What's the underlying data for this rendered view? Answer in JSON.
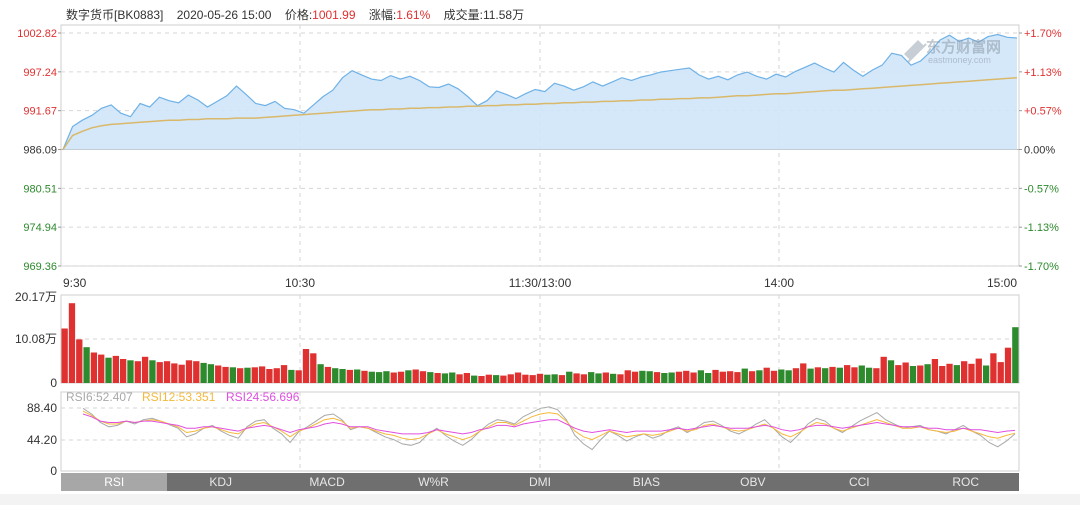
{
  "header": {
    "name": "数字货币[BK0883]",
    "datetime": "2020-05-26 15:00",
    "price_label": "价格:",
    "price": "1001.99",
    "change_label": "涨幅:",
    "change": "1.61%",
    "volume_label": "成交量:",
    "volume": "11.58万"
  },
  "watermark": {
    "cn": "东方财富网",
    "en": "eastmoney.com"
  },
  "colors": {
    "up": "#e03131",
    "down": "#2d8a2d",
    "price_line": "#6fb1e6",
    "price_fill": "#cfe6fa",
    "avg_line": "#d9b86a",
    "rsi6": "#a9a9a9",
    "rsi12": "#f5b93a",
    "rsi24": "#e04fe0"
  },
  "chart_data": [
    {
      "type": "area",
      "title": "",
      "y_left_ticks": [
        "1002.82",
        "997.24",
        "991.67",
        "986.09",
        "980.51",
        "974.94",
        "969.36"
      ],
      "y_right_ticks": [
        "+1.70%",
        "+1.13%",
        "+0.57%",
        "0.00%",
        "-0.57%",
        "-1.13%",
        "-1.70%"
      ],
      "ylim": [
        969.36,
        1002.82
      ],
      "x_ticks": [
        "9:30",
        "10:30",
        "11:30/13:00",
        "14:00",
        "15:00"
      ],
      "series": [
        {
          "name": "价格",
          "values": [
            986.1,
            989.4,
            990.3,
            991.0,
            992.0,
            992.5,
            991.3,
            990.8,
            992.7,
            992.2,
            993.6,
            993.1,
            992.8,
            993.9,
            993.2,
            992.2,
            993.0,
            993.8,
            995.2,
            994.0,
            992.7,
            992.4,
            993.0,
            992.0,
            991.8,
            991.3,
            992.5,
            993.7,
            994.6,
            996.4,
            997.4,
            996.8,
            996.2,
            996.0,
            996.7,
            996.2,
            996.6,
            996.0,
            995.1,
            995.0,
            995.5,
            994.8,
            993.7,
            992.4,
            993.1,
            994.5,
            994.0,
            993.4,
            994.1,
            994.7,
            994.4,
            995.6,
            995.2,
            994.6,
            995.1,
            995.8,
            995.2,
            995.8,
            996.4,
            996.0,
            996.5,
            996.8,
            997.2,
            997.4,
            997.6,
            997.8,
            996.8,
            996.2,
            996.6,
            996.1,
            996.8,
            997.2,
            996.6,
            996.2,
            996.9,
            996.5,
            997.3,
            997.9,
            998.5,
            997.8,
            997.2,
            998.6,
            997.5,
            996.6,
            997.5,
            998.2,
            999.9,
            999.6,
            998.2,
            998.8,
            1000.1,
            1001.8,
            1002.5,
            1001.6,
            1002.1,
            1001.5,
            1002.3,
            1002.6,
            1002.2,
            1002.1
          ]
        },
        {
          "name": "均价",
          "values": [
            986.1,
            988.1,
            988.7,
            989.2,
            989.5,
            989.7,
            989.8,
            989.9,
            990.0,
            990.1,
            990.2,
            990.3,
            990.3,
            990.4,
            990.4,
            990.5,
            990.5,
            990.5,
            990.6,
            990.6,
            990.6,
            990.7,
            990.8,
            990.9,
            991.0,
            991.1,
            991.2,
            991.3,
            991.4,
            991.5,
            991.6,
            991.7,
            991.8,
            991.8,
            991.9,
            991.9,
            992.0,
            992.0,
            992.1,
            992.1,
            992.2,
            992.2,
            992.3,
            992.3,
            992.4,
            992.4,
            992.5,
            992.5,
            992.6,
            992.6,
            992.7,
            992.7,
            992.8,
            992.8,
            992.9,
            992.9,
            993.0,
            993.0,
            993.1,
            993.1,
            993.2,
            993.2,
            993.3,
            993.3,
            993.4,
            993.4,
            993.5,
            993.5,
            993.6,
            993.7,
            993.8,
            993.8,
            993.9,
            994.0,
            994.1,
            994.1,
            994.2,
            994.3,
            994.4,
            994.5,
            994.6,
            994.6,
            994.7,
            994.8,
            994.9,
            995.0,
            995.1,
            995.2,
            995.3,
            995.4,
            995.5,
            995.6,
            995.7,
            995.8,
            995.9,
            996.0,
            996.1,
            996.2,
            996.3,
            996.4
          ]
        }
      ]
    },
    {
      "type": "bar",
      "y_ticks": [
        "20.17万",
        "10.08万",
        "0"
      ],
      "ylim": [
        0,
        20.17
      ],
      "values": [
        12.5,
        18.3,
        10.0,
        8.2,
        7.0,
        6.5,
        5.8,
        6.2,
        5.5,
        5.2,
        5.0,
        6.0,
        5.2,
        4.8,
        5.0,
        4.5,
        4.2,
        5.2,
        5.0,
        4.6,
        4.3,
        4.0,
        3.7,
        3.6,
        3.4,
        3.5,
        3.6,
        3.8,
        3.2,
        3.4,
        4.1,
        3.0,
        2.9,
        7.8,
        6.8,
        4.3,
        3.7,
        3.4,
        3.2,
        3.0,
        3.1,
        2.8,
        2.6,
        2.5,
        2.7,
        2.4,
        2.6,
        2.9,
        3.1,
        2.7,
        2.5,
        2.3,
        2.2,
        2.4,
        2.0,
        2.3,
        1.7,
        1.6,
        1.9,
        1.8,
        1.7,
        2.0,
        2.4,
        1.9,
        1.8,
        2.1,
        1.9,
        2.0,
        1.8,
        2.6,
        2.2,
        2.0,
        2.5,
        2.2,
        2.4,
        2.1,
        2.0,
        2.9,
        2.6,
        2.8,
        2.7,
        2.5,
        2.3,
        2.4,
        2.6,
        2.8,
        2.4,
        2.9,
        2.3,
        3.0,
        2.6,
        2.7,
        2.5,
        3.3,
        2.7,
        2.9,
        3.5,
        2.8,
        3.1,
        2.9,
        3.4,
        4.5,
        3.3,
        3.6,
        3.4,
        3.7,
        3.5,
        4.1,
        3.6,
        4.0,
        3.5,
        3.4,
        6.0,
        5.2,
        4.1,
        4.7,
        3.9,
        4.0,
        4.3,
        5.5,
        3.9,
        4.4,
        4.1,
        5.0,
        4.4,
        5.6,
        4.0,
        6.8,
        4.8,
        8.1,
        12.8
      ],
      "colors_up": [
        1,
        1,
        1,
        0,
        1,
        1,
        0,
        1,
        1,
        0,
        1,
        1,
        0,
        1,
        1,
        1,
        1,
        1,
        1,
        0,
        0,
        1,
        1,
        0,
        1,
        0,
        1,
        1,
        1,
        1,
        1,
        0,
        1,
        1,
        1,
        0,
        1,
        0,
        0,
        1,
        0,
        1,
        0,
        0,
        0,
        1,
        1,
        0,
        1,
        1,
        0,
        1,
        0,
        0,
        1,
        1,
        0,
        1,
        1,
        0,
        1,
        1,
        1,
        1,
        1,
        1,
        0,
        0,
        1,
        0,
        1,
        1,
        0,
        0,
        1,
        0,
        1,
        1,
        1,
        0,
        0,
        1,
        0,
        0,
        1,
        1,
        1,
        0,
        0,
        1,
        1,
        1,
        1,
        0,
        1,
        0,
        1,
        1,
        0,
        0,
        1,
        1,
        0,
        1,
        0,
        1,
        0,
        1,
        1,
        0,
        0,
        1,
        1,
        0,
        1,
        1,
        0,
        1,
        0,
        1,
        1,
        1,
        0,
        1,
        1,
        1,
        0,
        1,
        1,
        1,
        0
      ]
    },
    {
      "type": "line",
      "y_ticks": [
        "88.40",
        "44.20",
        "0"
      ],
      "ylim": [
        0,
        88.4
      ],
      "legend": [
        "RSI6:52.407",
        "RSI12:53.351",
        "RSI24:56.696"
      ],
      "series": [
        {
          "name": "RSI6",
          "values": [
            88,
            80,
            68,
            62,
            64,
            70,
            66,
            72,
            74,
            70,
            65,
            60,
            48,
            52,
            60,
            64,
            56,
            50,
            46,
            62,
            70,
            72,
            60,
            52,
            40,
            55,
            62,
            70,
            78,
            80,
            72,
            58,
            62,
            60,
            54,
            48,
            44,
            38,
            36,
            40,
            52,
            60,
            50,
            42,
            36,
            44,
            56,
            66,
            72,
            70,
            66,
            76,
            82,
            88,
            90,
            86,
            72,
            50,
            38,
            30,
            44,
            56,
            50,
            42,
            48,
            52,
            46,
            50,
            58,
            62,
            54,
            60,
            68,
            70,
            64,
            56,
            52,
            58,
            66,
            72,
            60,
            48,
            40,
            52,
            66,
            74,
            70,
            60,
            54,
            62,
            70,
            76,
            82,
            72,
            66,
            60,
            62,
            64,
            58,
            56,
            52,
            58,
            64,
            56,
            50,
            40,
            34,
            42,
            52
          ]
        },
        {
          "name": "RSI12",
          "values": [
            84,
            78,
            70,
            66,
            66,
            70,
            68,
            70,
            72,
            70,
            66,
            62,
            54,
            56,
            60,
            62,
            58,
            54,
            52,
            60,
            66,
            68,
            62,
            56,
            48,
            56,
            60,
            66,
            72,
            74,
            70,
            60,
            62,
            60,
            56,
            52,
            50,
            46,
            44,
            46,
            52,
            58,
            52,
            48,
            44,
            48,
            56,
            62,
            68,
            68,
            64,
            70,
            76,
            80,
            82,
            80,
            70,
            56,
            48,
            44,
            50,
            56,
            52,
            48,
            50,
            52,
            50,
            52,
            56,
            60,
            56,
            58,
            64,
            66,
            62,
            58,
            56,
            58,
            62,
            66,
            60,
            52,
            48,
            54,
            62,
            68,
            66,
            60,
            56,
            60,
            64,
            68,
            72,
            68,
            64,
            60,
            60,
            62,
            58,
            56,
            54,
            56,
            60,
            56,
            52,
            48,
            46,
            50,
            53
          ]
        },
        {
          "name": "RSI24",
          "values": [
            80,
            76,
            70,
            68,
            68,
            70,
            68,
            70,
            70,
            68,
            66,
            64,
            60,
            60,
            62,
            62,
            60,
            58,
            56,
            60,
            62,
            64,
            62,
            58,
            54,
            58,
            60,
            62,
            66,
            68,
            66,
            62,
            62,
            62,
            58,
            56,
            54,
            52,
            52,
            52,
            54,
            58,
            56,
            54,
            52,
            54,
            58,
            60,
            64,
            64,
            62,
            66,
            68,
            70,
            72,
            72,
            66,
            60,
            56,
            54,
            56,
            58,
            56,
            54,
            56,
            56,
            56,
            56,
            58,
            60,
            58,
            60,
            62,
            64,
            62,
            60,
            60,
            60,
            62,
            64,
            62,
            58,
            56,
            58,
            62,
            64,
            64,
            62,
            60,
            62,
            64,
            66,
            68,
            66,
            64,
            62,
            62,
            62,
            60,
            60,
            58,
            58,
            60,
            58,
            58,
            56,
            54,
            56,
            57
          ]
        }
      ]
    }
  ],
  "tabs": [
    "RSI",
    "KDJ",
    "MACD",
    "W%R",
    "DMI",
    "BIAS",
    "OBV",
    "CCI",
    "ROC"
  ],
  "active_tab": "RSI"
}
